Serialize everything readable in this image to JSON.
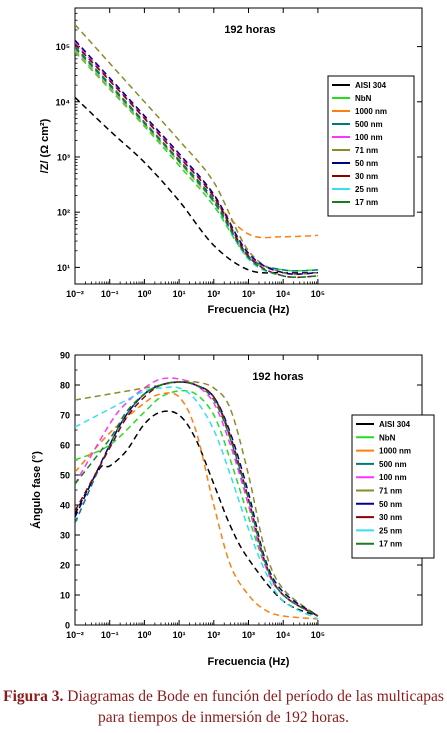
{
  "figure": {
    "caption_label": "Figura 3.",
    "caption_text": "Diagramas de Bode en función del período de las multicapas para tiempos de inmersión de 192 horas."
  },
  "chart_data": [
    {
      "type": "line",
      "title": "192 horas",
      "xlabel": "Frecuencia (Hz)",
      "ylabel": "/Z/ (Ω cm²)",
      "xscale": "log",
      "yscale": "log",
      "xlim": [
        0.01,
        100000000
      ],
      "ylim": [
        5,
        500000
      ],
      "xticks": [
        "10⁻²",
        "10⁻¹",
        "10⁰",
        "10¹",
        "10²",
        "10³",
        "10⁴",
        "10⁵"
      ],
      "yticks": [
        "10¹",
        "10²",
        "10³",
        "10⁴",
        "10⁵"
      ],
      "legend_position": "right",
      "series": [
        {
          "name": "AISI 304",
          "color": "#000000",
          "x": [
            0.01,
            0.1,
            1,
            10,
            100,
            1000,
            10000,
            100000
          ],
          "y": [
            12000,
            3000,
            800,
            160,
            25,
            9,
            8,
            8
          ]
        },
        {
          "name": "NbN",
          "color": "#22dd22",
          "x": [
            0.01,
            0.1,
            1,
            10,
            100,
            1000,
            10000,
            100000
          ],
          "y": [
            80000,
            17000,
            3600,
            700,
            130,
            15,
            9,
            9
          ]
        },
        {
          "name": "1000 nm",
          "color": "#ff7f0e",
          "x": [
            0.01,
            0.1,
            1,
            10,
            100,
            1000,
            10000,
            100000
          ],
          "y": [
            85000,
            18000,
            3900,
            800,
            160,
            40,
            36,
            38
          ]
        },
        {
          "name": "500 nm",
          "color": "#007a7a",
          "x": [
            0.01,
            0.1,
            1,
            10,
            100,
            1000,
            10000,
            100000
          ],
          "y": [
            100000,
            21000,
            4300,
            880,
            170,
            16,
            9,
            9
          ]
        },
        {
          "name": "100 nm",
          "color": "#ff33ff",
          "x": [
            0.01,
            0.1,
            1,
            10,
            100,
            1000,
            10000,
            100000
          ],
          "y": [
            120000,
            25000,
            5200,
            1050,
            200,
            17,
            8,
            8
          ]
        },
        {
          "name": "71 nm",
          "color": "#8b8b2a",
          "x": [
            0.01,
            0.1,
            1,
            10,
            100,
            1000,
            10000,
            100000
          ],
          "y": [
            250000,
            50000,
            10000,
            2000,
            350,
            20,
            8,
            8
          ]
        },
        {
          "name": "50 nm",
          "color": "#00008b",
          "x": [
            0.01,
            0.1,
            1,
            10,
            100,
            1000,
            10000,
            100000
          ],
          "y": [
            130000,
            27000,
            5600,
            1150,
            210,
            18,
            8,
            8
          ]
        },
        {
          "name": "30 nm",
          "color": "#8b0000",
          "x": [
            0.01,
            0.1,
            1,
            10,
            100,
            1000,
            10000,
            100000
          ],
          "y": [
            110000,
            24000,
            5000,
            1000,
            190,
            16,
            7,
            7
          ]
        },
        {
          "name": "25 nm",
          "color": "#33e0ee",
          "x": [
            0.01,
            0.1,
            1,
            10,
            100,
            1000,
            10000,
            100000
          ],
          "y": [
            90000,
            19000,
            4000,
            820,
            150,
            14,
            7,
            7
          ]
        },
        {
          "name": "17 nm",
          "color": "#1e7a1e",
          "x": [
            0.01,
            0.1,
            1,
            10,
            100,
            1000,
            10000,
            100000
          ],
          "y": [
            95000,
            20000,
            4100,
            840,
            155,
            15,
            7,
            7
          ]
        }
      ]
    },
    {
      "type": "line",
      "title": "192 horas",
      "xlabel": "Frecuencia (Hz)",
      "ylabel": "Ángulo fase (°)",
      "xscale": "log",
      "yscale": "linear",
      "xlim": [
        0.01,
        100000000
      ],
      "ylim": [
        0,
        90
      ],
      "xticks": [
        "10⁻²",
        "10⁻¹",
        "10⁰",
        "10¹",
        "10²",
        "10³",
        "10⁴",
        "10⁵"
      ],
      "yticks": [
        "0",
        "10",
        "20",
        "30",
        "40",
        "50",
        "60",
        "70",
        "80",
        "90"
      ],
      "legend_position": "right",
      "series": [
        {
          "name": "AISI 304",
          "color": "#000000",
          "x": [
            0.01,
            0.05,
            0.1,
            0.3,
            1,
            3,
            10,
            30,
            100,
            300,
            1000,
            10000,
            100000
          ],
          "y": [
            37,
            52,
            53,
            58,
            67,
            71,
            70,
            62,
            47,
            33,
            22,
            8,
            3
          ]
        },
        {
          "name": "NbN",
          "color": "#22dd22",
          "x": [
            0.01,
            0.1,
            1,
            3,
            10,
            30,
            100,
            300,
            1000,
            3000,
            10000,
            100000
          ],
          "y": [
            55,
            60,
            71,
            76,
            78,
            77,
            70,
            55,
            36,
            20,
            10,
            3
          ]
        },
        {
          "name": "1000 nm",
          "color": "#ff7f0e",
          "x": [
            0.01,
            0.1,
            1,
            3,
            10,
            30,
            100,
            300,
            1000,
            3000,
            10000,
            100000
          ],
          "y": [
            51,
            64,
            74,
            77,
            76,
            65,
            40,
            20,
            10,
            5,
            3,
            2
          ]
        },
        {
          "name": "500 nm",
          "color": "#007a7a",
          "x": [
            0.01,
            0.1,
            0.3,
            1,
            3,
            10,
            30,
            100,
            300,
            1000,
            3000,
            10000,
            100000
          ],
          "y": [
            34,
            60,
            70,
            77,
            80,
            81,
            80,
            76,
            62,
            40,
            20,
            10,
            3
          ]
        },
        {
          "name": "100 nm",
          "color": "#ff33ff",
          "x": [
            0.01,
            0.1,
            0.3,
            1,
            3,
            10,
            30,
            100,
            300,
            1000,
            3000,
            10000,
            100000
          ],
          "y": [
            47,
            67,
            74,
            79,
            82,
            82,
            80,
            74,
            60,
            40,
            20,
            10,
            3
          ]
        },
        {
          "name": "71 nm",
          "color": "#8b8b2a",
          "x": [
            0.01,
            0.1,
            1,
            3,
            10,
            30,
            100,
            300,
            1000,
            3000,
            10000,
            100000
          ],
          "y": [
            75,
            77,
            79,
            80,
            81,
            81,
            79,
            72,
            50,
            25,
            12,
            3
          ]
        },
        {
          "name": "50 nm",
          "color": "#00008b",
          "x": [
            0.01,
            0.1,
            0.3,
            1,
            3,
            10,
            30,
            100,
            300,
            1000,
            3000,
            10000,
            100000
          ],
          "y": [
            36,
            60,
            70,
            77,
            80,
            81,
            80,
            76,
            64,
            44,
            22,
            11,
            3
          ]
        },
        {
          "name": "30 nm",
          "color": "#8b0000",
          "x": [
            0.01,
            0.1,
            0.3,
            1,
            3,
            10,
            30,
            100,
            300,
            1000,
            3000,
            10000,
            100000
          ],
          "y": [
            38,
            59,
            69,
            76,
            80,
            81,
            80,
            76,
            63,
            42,
            21,
            10,
            3
          ]
        },
        {
          "name": "25 nm",
          "color": "#33e0ee",
          "x": [
            0.01,
            0.1,
            1,
            3,
            10,
            30,
            100,
            300,
            1000,
            3000,
            10000,
            100000
          ],
          "y": [
            66,
            72,
            78,
            79,
            79,
            75,
            65,
            50,
            32,
            18,
            8,
            2
          ]
        },
        {
          "name": "17 nm",
          "color": "#1e7a1e",
          "x": [
            0.01,
            0.1,
            0.3,
            1,
            3,
            10,
            30,
            100,
            300,
            1000,
            3000,
            10000,
            100000
          ],
          "y": [
            47,
            62,
            71,
            77,
            80,
            81,
            80,
            75,
            62,
            42,
            21,
            10,
            3
          ]
        }
      ]
    }
  ]
}
